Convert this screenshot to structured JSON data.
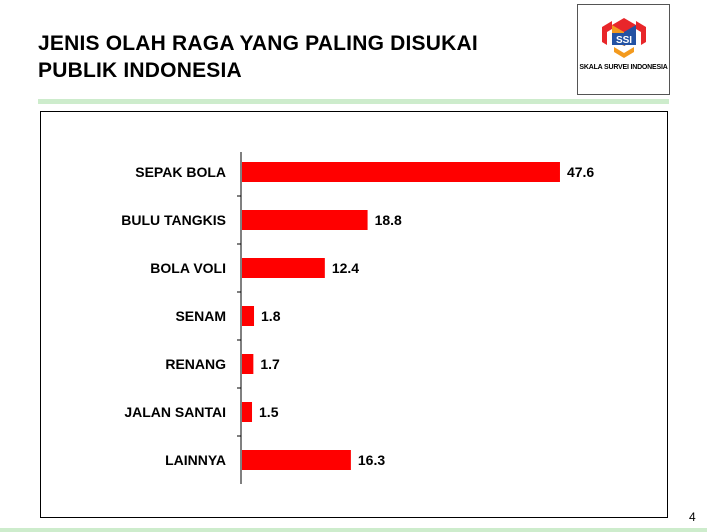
{
  "slide": {
    "title_line1": "JENIS OLAH RAGA YANG PALING DISUKAI",
    "title_line2": "PUBLIK INDONESIA",
    "page_number": "4"
  },
  "logo": {
    "text": "SSI",
    "caption": "SKALA SURVEI INDONESIA",
    "colors": {
      "red": "#e8262a",
      "orange": "#f39a1e",
      "blue": "#2352a3"
    }
  },
  "colors": {
    "bar": "#ff0000",
    "accent_rule": "#cdeccc"
  },
  "chart_data": {
    "type": "bar",
    "orientation": "horizontal",
    "categories": [
      "SEPAK BOLA",
      "BULU TANGKIS",
      "BOLA VOLI",
      "SENAM",
      "RENANG",
      "JALAN SANTAI",
      "LAINNYA"
    ],
    "values": [
      47.6,
      18.8,
      12.4,
      1.8,
      1.7,
      1.5,
      16.3
    ],
    "data_labels": [
      "47.6",
      "18.8",
      "12.4",
      "1.8",
      "1.7",
      "1.5",
      "16.3"
    ],
    "xlim": [
      0,
      50
    ],
    "grid": false,
    "legend": "none"
  }
}
